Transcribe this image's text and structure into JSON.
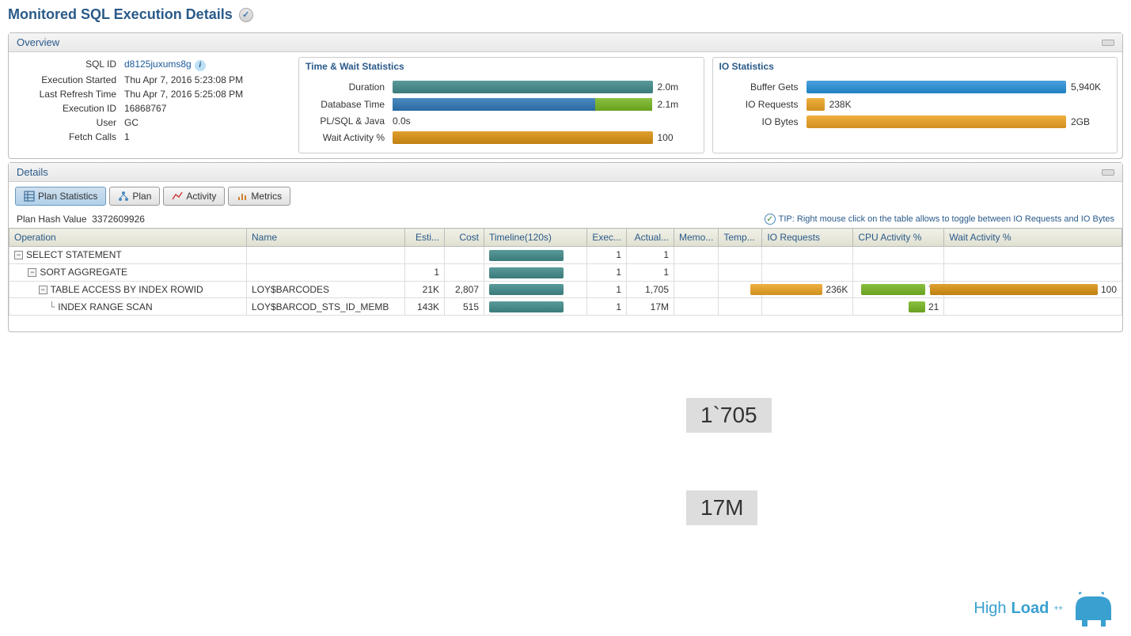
{
  "page_title": "Monitored SQL Execution Details",
  "overview_label": "Overview",
  "details_label": "Details",
  "info": {
    "sql_id_label": "SQL ID",
    "sql_id": "d8125juxums8g",
    "exec_started_label": "Execution Started",
    "exec_started": "Thu Apr 7, 2016 5:23:08 PM",
    "last_refresh_label": "Last Refresh Time",
    "last_refresh": "Thu Apr 7, 2016 5:25:08 PM",
    "exec_id_label": "Execution ID",
    "exec_id": "16868767",
    "user_label": "User",
    "user": "GC",
    "fetch_label": "Fetch Calls",
    "fetch": "1"
  },
  "time_stats": {
    "title": "Time & Wait Statistics",
    "duration_label": "Duration",
    "duration_val": "2.0m",
    "duration_pct": 96,
    "dbtime_label": "Database Time",
    "dbtime_val": "2.1m",
    "dbtime_blue_pct": 78,
    "dbtime_green_pct": 22,
    "plsql_label": "PL/SQL & Java",
    "plsql_val": "0.0s",
    "wait_label": "Wait Activity %",
    "wait_val": "100",
    "wait_pct": 96
  },
  "io_stats": {
    "title": "IO Statistics",
    "buffer_label": "Buffer Gets",
    "buffer_val": "5,940K",
    "buffer_pct": 100,
    "req_label": "IO Requests",
    "req_val": "238K",
    "req_pct": 6,
    "bytes_label": "IO Bytes",
    "bytes_val": "2GB",
    "bytes_pct": 100
  },
  "tabs": {
    "plan_stats": "Plan Statistics",
    "plan": "Plan",
    "activity": "Activity",
    "metrics": "Metrics"
  },
  "plan_hash_label": "Plan Hash Value",
  "plan_hash_value": "3372609926",
  "tip_text": "TIP: Right mouse click on the table allows to toggle between IO Requests and IO Bytes",
  "columns": {
    "operation": "Operation",
    "name": "Name",
    "esti": "Esti...",
    "cost": "Cost",
    "timeline": "Timeline(120s)",
    "exec": "Exec...",
    "actual": "Actual...",
    "memo": "Memo...",
    "temp": "Temp...",
    "ioreq": "IO Requests",
    "cpu": "CPU Activity %",
    "wait": "Wait Activity %"
  },
  "rows": [
    {
      "indent": 0,
      "toggle": true,
      "op": "SELECT STATEMENT",
      "name": "",
      "esti": "",
      "cost": "",
      "tl_w": 80,
      "tl_off": 0,
      "exec": "1",
      "actual": "1",
      "ioreq": "",
      "ioreq_w": 0,
      "cpu": "",
      "cpu_w": 0,
      "wait": "",
      "wait_w": 0
    },
    {
      "indent": 1,
      "toggle": true,
      "op": "SORT AGGREGATE",
      "name": "",
      "esti": "1",
      "cost": "",
      "tl_w": 80,
      "tl_off": 0,
      "exec": "1",
      "actual": "1",
      "ioreq": "",
      "ioreq_w": 0,
      "cpu": "",
      "cpu_w": 0,
      "wait": "",
      "wait_w": 0
    },
    {
      "indent": 2,
      "toggle": true,
      "op": "TABLE ACCESS BY INDEX ROWID",
      "name": "LOY$BARCODES",
      "esti": "21K",
      "cost": "2,807",
      "tl_w": 80,
      "tl_off": 0,
      "exec": "1",
      "actual": "1,705",
      "ioreq": "236K",
      "ioreq_w": 90,
      "cpu": "79",
      "cpu_w": 79,
      "wait": "100",
      "wait_w": 100
    },
    {
      "indent": 3,
      "toggle": false,
      "op": "INDEX RANGE SCAN",
      "name": "LOY$BARCOD_STS_ID_MEMB",
      "esti": "143K",
      "cost": "515",
      "tl_w": 80,
      "tl_off": 0,
      "exec": "1",
      "actual": "17M",
      "ioreq": "",
      "ioreq_w": 0,
      "cpu": "21",
      "cpu_w": 21,
      "wait": "",
      "wait_w": 0
    }
  ],
  "annotations": {
    "a1": "1`705",
    "a2": "17M"
  },
  "logo_text1": "High",
  "logo_text2": "Load",
  "colors": {
    "teal": "#4a8a8a",
    "blue": "#3a7ab0",
    "green": "#7ab030",
    "orange": "#d09020",
    "bluebar": "#3090d0",
    "orangebar": "#e0a030",
    "brown": "#b08030"
  }
}
